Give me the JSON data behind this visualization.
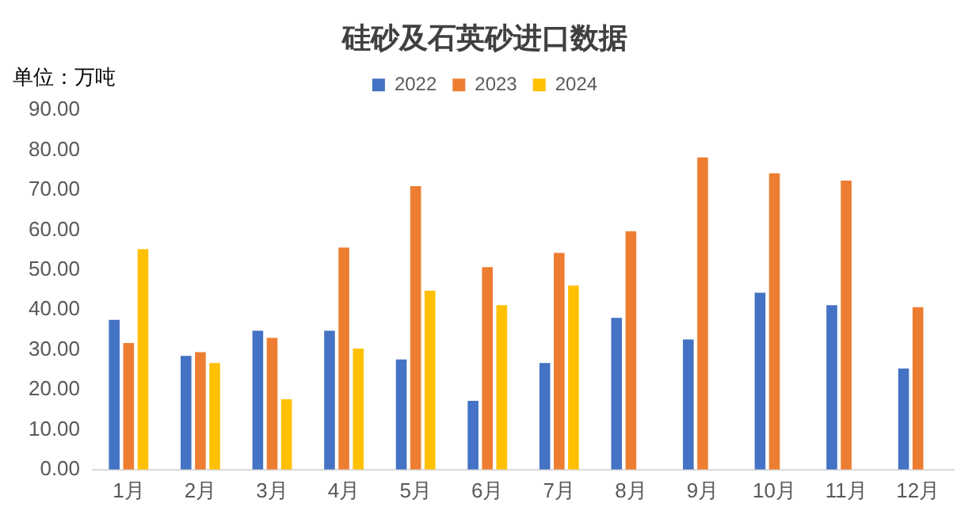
{
  "chart_data": {
    "type": "bar",
    "title": "硅砂及石英砂进口数据",
    "ylabel": "单位：万吨",
    "categories": [
      "1月",
      "2月",
      "3月",
      "4月",
      "5月",
      "6月",
      "7月",
      "8月",
      "9月",
      "10月",
      "11月",
      "12月"
    ],
    "series": [
      {
        "name": "2022",
        "color": "#4472c4",
        "values": [
          37.5,
          28.5,
          34.8,
          34.8,
          27.6,
          17.2,
          26.7,
          38,
          32.6,
          44.3,
          41.2,
          25.3
        ]
      },
      {
        "name": "2023",
        "color": "#ed7d31",
        "values": [
          31.7,
          29.4,
          33,
          55.6,
          71,
          50.7,
          54.3,
          59.7,
          78.2,
          74.2,
          72.4,
          40.7
        ]
      },
      {
        "name": "2024",
        "color": "#ffc000",
        "values": [
          55.2,
          26.7,
          17.6,
          30.3,
          44.8,
          41.2,
          46.1,
          null,
          null,
          null,
          null,
          null
        ]
      }
    ],
    "ylim": [
      0,
      90
    ],
    "yticks": [
      {
        "value": 0,
        "label": "0.00"
      },
      {
        "value": 10,
        "label": "10.00"
      },
      {
        "value": 20,
        "label": "20.00"
      },
      {
        "value": 30,
        "label": "30.00"
      },
      {
        "value": 40,
        "label": "40.00"
      },
      {
        "value": 50,
        "label": "50.00"
      },
      {
        "value": 60,
        "label": "60.00"
      },
      {
        "value": 70,
        "label": "70.00"
      },
      {
        "value": 80,
        "label": "80.00"
      },
      {
        "value": 90,
        "label": "90.00"
      }
    ],
    "grid": false,
    "legend": "top"
  }
}
